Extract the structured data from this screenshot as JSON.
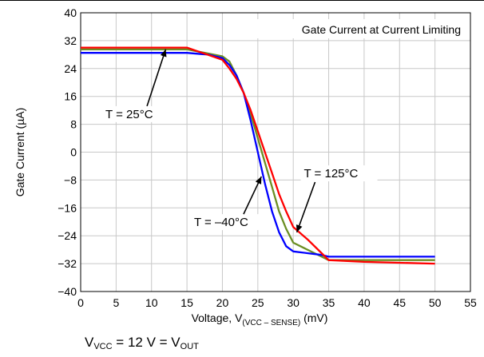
{
  "chart_data": {
    "type": "line",
    "title": "Gate Current at Current Limiting",
    "xlabel_main": "Voltage, V",
    "xlabel_sub": "(VCC – SENSE)",
    "xlabel_unit": " (mV)",
    "ylabel": "Gate Current (µA)",
    "xlim": [
      0,
      55
    ],
    "ylim": [
      -40,
      40
    ],
    "x_ticks": [
      "0",
      "5",
      "10",
      "15",
      "20",
      "25",
      "30",
      "35",
      "40",
      "45",
      "50",
      "55"
    ],
    "y_ticks": [
      "40",
      "32",
      "24",
      "16",
      "8",
      "0",
      "−8",
      "−16",
      "−24",
      "−32",
      "−40"
    ],
    "grid": true,
    "colors": {
      "blue": "#0000ff",
      "green": "#6b8e23",
      "red": "#ff0000"
    },
    "series": [
      {
        "color": "green",
        "points": [
          [
            0,
            29.5
          ],
          [
            15,
            29.5
          ],
          [
            20,
            27.5
          ],
          [
            21,
            26
          ],
          [
            22,
            22
          ],
          [
            23,
            17
          ],
          [
            24,
            11
          ],
          [
            25,
            4
          ],
          [
            26,
            -3
          ],
          [
            27,
            -10
          ],
          [
            28,
            -17
          ],
          [
            29,
            -22
          ],
          [
            30,
            -26
          ],
          [
            32,
            -28
          ],
          [
            34,
            -30
          ],
          [
            35,
            -31
          ],
          [
            50,
            -31
          ]
        ]
      },
      {
        "color": "blue",
        "points": [
          [
            0,
            28.5
          ],
          [
            15,
            28.5
          ],
          [
            18,
            28
          ],
          [
            20,
            27
          ],
          [
            21,
            25
          ],
          [
            22,
            22
          ],
          [
            23,
            17
          ],
          [
            24,
            9
          ],
          [
            25,
            0
          ],
          [
            26,
            -9
          ],
          [
            27,
            -17
          ],
          [
            28,
            -23
          ],
          [
            29,
            -27
          ],
          [
            30,
            -28.5
          ],
          [
            32,
            -29
          ],
          [
            34,
            -29.5
          ],
          [
            35,
            -30
          ],
          [
            50,
            -30
          ]
        ]
      },
      {
        "color": "red",
        "points": [
          [
            0,
            30
          ],
          [
            15,
            30
          ],
          [
            20,
            26.5
          ],
          [
            21,
            24
          ],
          [
            22,
            21
          ],
          [
            23,
            17
          ],
          [
            24,
            12
          ],
          [
            25,
            6
          ],
          [
            26,
            0
          ],
          [
            27,
            -6
          ],
          [
            28,
            -12
          ],
          [
            29,
            -17
          ],
          [
            30,
            -21.5
          ],
          [
            32,
            -25
          ],
          [
            34,
            -29
          ],
          [
            35,
            -31
          ],
          [
            40,
            -31.5
          ],
          [
            50,
            -32
          ]
        ]
      }
    ],
    "annotations": [
      {
        "label": "T = 25°C",
        "text_at": [
          3.5,
          10
        ],
        "arrow_to": [
          12,
          29.5
        ]
      },
      {
        "label": "T = –40°C",
        "text_at": [
          16,
          -21
        ],
        "arrow_to": [
          25.5,
          -7
        ]
      },
      {
        "label": "T = 125°C",
        "text_at": [
          31.5,
          -7
        ],
        "arrow_to": [
          30.5,
          -23
        ]
      }
    ]
  },
  "caption": {
    "v1": "V",
    "s1": "VCC",
    "mid": " = 12 V = V",
    "s2": "OUT"
  }
}
